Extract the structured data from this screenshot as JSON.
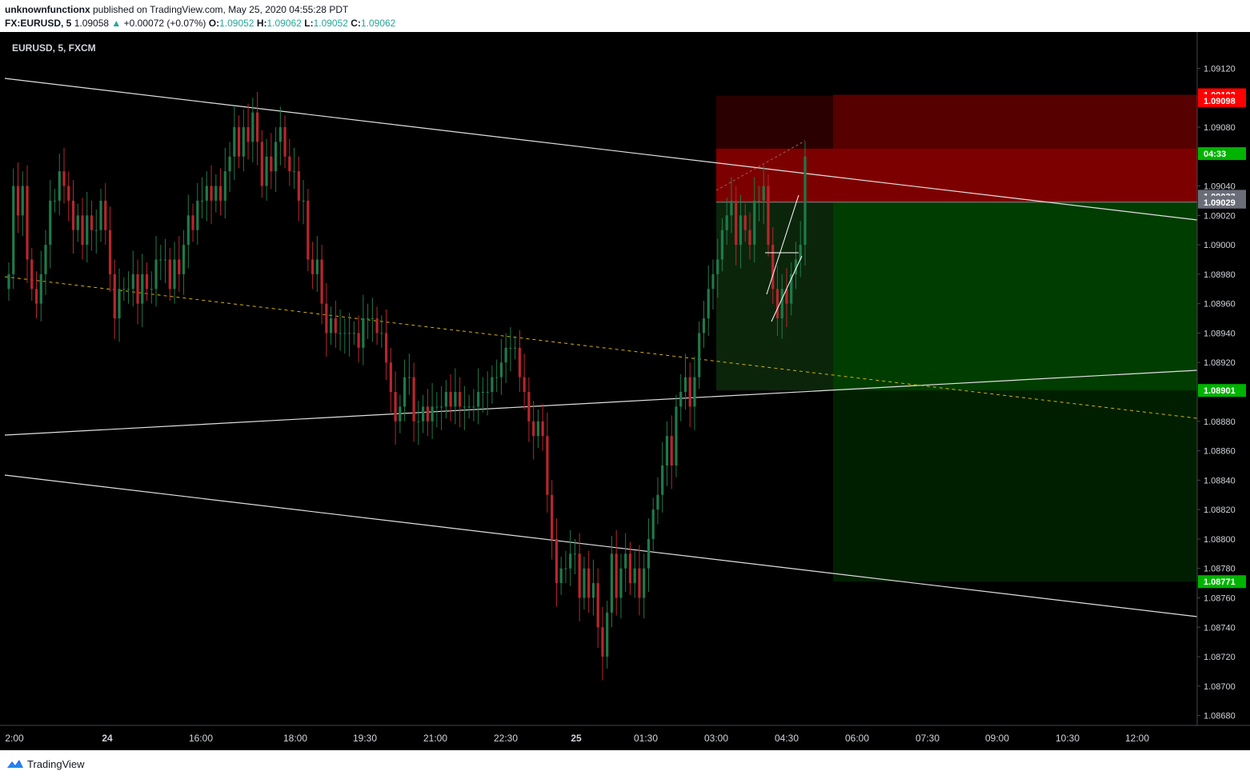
{
  "header": {
    "publisher": "unknownfunctionx",
    "published_text": "published on TradingView.com, May 25, 2020 04:55:28 PDT",
    "symbol_line": "FX:EURUSD, 5",
    "last": "1.09058",
    "arrow": "▲",
    "change": "+0.00072 (+0.07%)",
    "o_label": "O:",
    "o_value": "1.09052",
    "h_label": "H:",
    "h_value": "1.09062",
    "l_label": "L:",
    "l_value": "1.09052",
    "c_label": "C:",
    "c_value": "1.09062"
  },
  "footer": {
    "brand": "TradingView"
  },
  "colors": {
    "up": "#26a69a",
    "down": "#ef5350",
    "bull_candle": "#1f7a4a",
    "bear_candle": "#b8262b",
    "stop_zone": "#7d0000",
    "target_zone": "#003d00",
    "axis_text": "#d1d4dc",
    "label_red": "#ff0000",
    "label_green": "#00b300",
    "label_gray": "#6a6d78"
  },
  "chart_data": {
    "type": "candlestick",
    "title": "EURUSD, 5, FXCM",
    "ylim": [
      1.0867,
      1.0913
    ],
    "y_ticks": [
      "1.09120",
      "1.09100",
      "1.09080",
      "1.09060",
      "1.09040",
      "1.09020",
      "1.09000",
      "1.08980",
      "1.08960",
      "1.08940",
      "1.08920",
      "1.08900",
      "1.08880",
      "1.08860",
      "1.08840",
      "1.08820",
      "1.08800",
      "1.08780",
      "1.08760",
      "1.08740",
      "1.08720",
      "1.08700",
      "1.08680"
    ],
    "x_ticks": [
      "2:00",
      "24",
      "16:00",
      "18:00",
      "19:30",
      "21:00",
      "22:30",
      "25",
      "01:30",
      "03:00",
      "04:30",
      "06:00",
      "07:30",
      "09:00",
      "10:30",
      "12:00"
    ],
    "x_tick_bold": [
      "24",
      "25"
    ],
    "price_labels": [
      {
        "text": "1.09102",
        "value": 1.09102,
        "kind": "red"
      },
      {
        "text": "1.09098",
        "value": 1.09098,
        "kind": "red"
      },
      {
        "text": "04:33",
        "value": 1.09062,
        "kind": "green"
      },
      {
        "text": "1.09033",
        "value": 1.09033,
        "kind": "gray"
      },
      {
        "text": "1.09029",
        "value": 1.09029,
        "kind": "gray"
      },
      {
        "text": "1.08901",
        "value": 1.08901,
        "kind": "green"
      },
      {
        "text": "1.08771",
        "value": 1.08771,
        "kind": "green"
      }
    ],
    "closes": [
      1.0898,
      1.0904,
      1.0902,
      1.0904,
      1.0899,
      1.0897,
      1.0896,
      1.0898,
      1.09,
      1.0903,
      1.0903,
      1.0905,
      1.0904,
      1.0903,
      1.0901,
      1.0902,
      1.09,
      1.0902,
      1.0901,
      1.0901,
      1.0903,
      1.0901,
      1.0898,
      1.0895,
      1.0897,
      1.0897,
      1.0897,
      1.0898,
      1.0896,
      1.0898,
      1.0897,
      1.0897,
      1.0899,
      1.0899,
      1.0899,
      1.0897,
      1.0899,
      1.0898,
      1.09,
      1.0902,
      1.0901,
      1.0903,
      1.0903,
      1.0904,
      1.0903,
      1.0904,
      1.0903,
      1.0905,
      1.0906,
      1.0908,
      1.0906,
      1.0908,
      1.0907,
      1.0909,
      1.0907,
      1.0904,
      1.0906,
      1.0905,
      1.0907,
      1.0908,
      1.0906,
      1.0905,
      1.0905,
      1.0903,
      1.0903,
      1.0899,
      1.0898,
      1.0899,
      1.0896,
      1.0894,
      1.0895,
      1.0894,
      1.0894,
      1.0894,
      1.0894,
      1.0894,
      1.0893,
      1.0895,
      1.0895,
      1.0895,
      1.0894,
      1.0894,
      1.0892,
      1.089,
      1.0888,
      1.0889,
      1.0891,
      1.0891,
      1.0888,
      1.0888,
      1.0889,
      1.0888,
      1.0889,
      1.0889,
      1.0889,
      1.089,
      1.0889,
      1.089,
      1.0889,
      1.0889,
      1.0889,
      1.0889,
      1.089,
      1.089,
      1.089,
      1.0891,
      1.0891,
      1.0892,
      1.0893,
      1.0893,
      1.0893,
      1.0891,
      1.089,
      1.0888,
      1.0887,
      1.0888,
      1.0887,
      1.0883,
      1.088,
      1.0877,
      1.0878,
      1.0878,
      1.0879,
      1.0879,
      1.0876,
      1.0878,
      1.0876,
      1.0877,
      1.0874,
      1.0872,
      1.0875,
      1.0879,
      1.0876,
      1.0878,
      1.0879,
      1.0877,
      1.0878,
      1.0876,
      1.0878,
      1.088,
      1.0882,
      1.0883,
      1.0885,
      1.0887,
      1.0885,
      1.0889,
      1.089,
      1.0891,
      1.0889,
      1.0891,
      1.0894,
      1.0895,
      1.0897,
      1.0898,
      1.0899,
      1.0901,
      1.0902,
      1.0903,
      1.09,
      1.0902,
      1.0901,
      1.09,
      1.0903,
      1.0903,
      1.0904,
      1.09,
      1.0897,
      1.0895,
      1.0897,
      1.0896,
      1.0898,
      1.0899,
      1.09,
      1.0906
    ],
    "candle_x_range": [
      11,
      1006
    ],
    "position": {
      "type": "short",
      "entry": 1.09029,
      "stop_outer": 1.09102,
      "stop_inner": 1.09098,
      "target_inner": 1.08901,
      "target_outer": 1.08771
    }
  }
}
